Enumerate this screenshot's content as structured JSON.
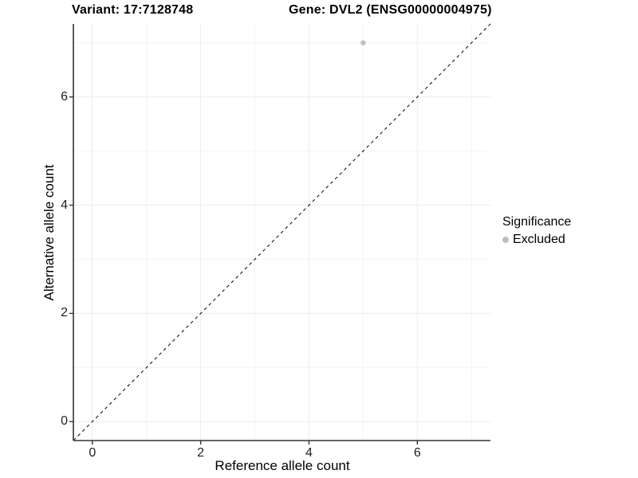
{
  "chart_data": {
    "type": "scatter",
    "titles": {
      "left": "Variant: 17:7128748",
      "right": "Gene: DVL2 (ENSG00000004975)"
    },
    "xlabel": "Reference allele count",
    "ylabel": "Alternative allele count",
    "xlim": [
      -0.35,
      7.35
    ],
    "ylim": [
      -0.35,
      7.35
    ],
    "x_ticks": [
      0,
      2,
      4,
      6
    ],
    "y_ticks": [
      0,
      2,
      4,
      6
    ],
    "x_minor": [
      1,
      3,
      5,
      7
    ],
    "y_minor": [
      1,
      3,
      5,
      7
    ],
    "grid": "major+minor",
    "legend_position": "right",
    "reference_line": {
      "type": "identity",
      "slope": 1,
      "intercept": 0,
      "style": "dashed",
      "color": "#000000"
    },
    "series": [
      {
        "name": "Excluded",
        "color": "#bebebe",
        "points": [
          {
            "x": 5,
            "y": 7
          }
        ]
      }
    ]
  },
  "legend": {
    "title": "Significance",
    "items": [
      {
        "label": "Excluded",
        "color": "#bebebe"
      }
    ]
  },
  "colors": {
    "grid_major": "#ebebeb",
    "grid_minor": "#f4f4f4",
    "axis_line": "#333333",
    "tick_mark": "#333333",
    "point": "#bebebe",
    "background": "#ffffff"
  }
}
